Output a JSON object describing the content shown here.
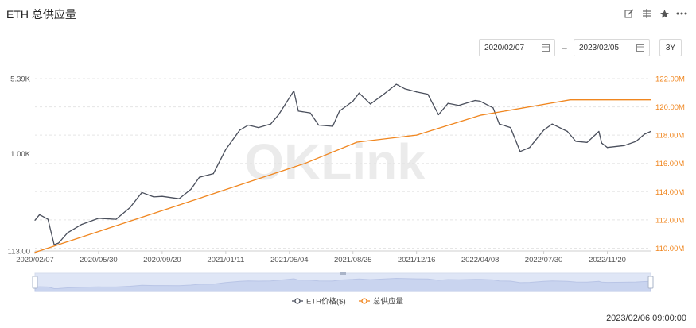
{
  "title": "ETH 总供应量",
  "toolbar": {
    "icons": [
      "edit-icon",
      "compare-icon",
      "star-icon",
      "more-icon"
    ]
  },
  "date_range": {
    "start": "2020/02/07",
    "end": "2023/02/05",
    "preset": "3Y"
  },
  "timestamp": "2023/02/06 09:00:00",
  "watermark": "OKLink",
  "colors": {
    "price": "#4a4f5c",
    "supply": "#f0861f",
    "grid": "#e5e5e5",
    "left_tick": "#555555",
    "right_tick": "#f0861f",
    "navigator_fill": "#dfe6f6",
    "navigator_line": "#b9c5e6"
  },
  "chart_data": {
    "type": "line",
    "x_labels": [
      "2020/02/07",
      "2020/05/30",
      "2020/09/20",
      "2021/01/11",
      "2021/05/04",
      "2021/08/25",
      "2021/12/16",
      "2022/04/08",
      "2022/07/30",
      "2022/11/20"
    ],
    "left_axis": {
      "scale": "log",
      "ticks": [
        "5.39K",
        "1.00K",
        "113.00"
      ],
      "tick_values": [
        5390,
        1000,
        113
      ]
    },
    "right_axis": {
      "ticks": [
        "122.00M",
        "120.00M",
        "118.00M",
        "116.00M",
        "114.00M",
        "112.00M",
        "110.00M"
      ],
      "tick_values": [
        122,
        120,
        118,
        116,
        114,
        112,
        110
      ],
      "ylim": [
        109.5,
        122
      ]
    },
    "series": [
      {
        "name": "ETH价格($)",
        "axis": "left",
        "x": [
          "2020/02/07",
          "2020/02/15",
          "2020/03/01",
          "2020/03/12",
          "2020/03/20",
          "2020/04/05",
          "2020/04/30",
          "2020/05/30",
          "2020/06/30",
          "2020/07/25",
          "2020/08/15",
          "2020/09/05",
          "2020/09/20",
          "2020/10/20",
          "2020/11/10",
          "2020/11/25",
          "2020/12/20",
          "2021/01/11",
          "2021/02/05",
          "2021/02/20",
          "2021/03/10",
          "2021/04/01",
          "2021/04/15",
          "2021/05/04",
          "2021/05/12",
          "2021/05/20",
          "2021/06/10",
          "2021/06/25",
          "2021/07/20",
          "2021/08/01",
          "2021/08/25",
          "2021/09/05",
          "2021/09/25",
          "2021/10/20",
          "2021/11/10",
          "2021/11/25",
          "2021/12/16",
          "2022/01/05",
          "2022/01/24",
          "2022/02/10",
          "2022/03/01",
          "2022/03/30",
          "2022/04/08",
          "2022/05/01",
          "2022/05/12",
          "2022/06/01",
          "2022/06/18",
          "2022/07/05",
          "2022/07/30",
          "2022/08/14",
          "2022/09/10",
          "2022/09/25",
          "2022/10/15",
          "2022/11/05",
          "2022/11/10",
          "2022/11/20",
          "2022/12/20",
          "2023/01/10",
          "2023/01/25",
          "2023/02/05"
        ],
        "values": [
          225,
          255,
          230,
          130,
          135,
          170,
          205,
          235,
          230,
          300,
          420,
          380,
          385,
          365,
          450,
          590,
          640,
          1100,
          1700,
          1900,
          1800,
          1950,
          2400,
          3500,
          4100,
          2600,
          2500,
          1900,
          1850,
          2600,
          3250,
          3900,
          3050,
          3850,
          4750,
          4300,
          4000,
          3800,
          2400,
          3100,
          2950,
          3300,
          3250,
          2800,
          1950,
          1800,
          1050,
          1150,
          1700,
          1950,
          1650,
          1320,
          1290,
          1650,
          1270,
          1150,
          1200,
          1320,
          1550,
          1650
        ]
      },
      {
        "name": "总供应量",
        "axis": "right",
        "x": [
          "2020/02/07",
          "2020/10/01",
          "2021/06/01",
          "2021/09/01",
          "2021/12/16",
          "2022/04/08",
          "2022/09/15",
          "2023/02/05"
        ],
        "values": [
          109.7,
          112.8,
          116.0,
          117.5,
          118.0,
          119.4,
          120.5,
          120.5
        ]
      }
    ]
  }
}
